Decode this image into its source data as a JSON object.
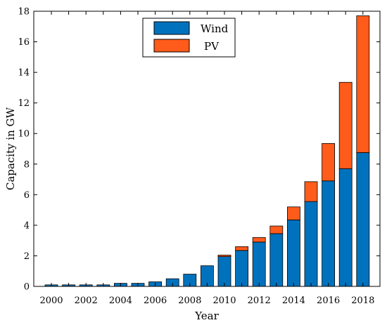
{
  "chart_data": {
    "type": "bar",
    "stacked": true,
    "xlabel": "Year",
    "ylabel": "Capacity in GW",
    "ylim": [
      0,
      18
    ],
    "yticks": [
      0,
      2,
      4,
      6,
      8,
      10,
      12,
      14,
      16,
      18
    ],
    "categories": [
      "2000",
      "2001",
      "2002",
      "2003",
      "2004",
      "2005",
      "2006",
      "2007",
      "2008",
      "2009",
      "2010",
      "2011",
      "2012",
      "2013",
      "2014",
      "2015",
      "2016",
      "2017",
      "2018"
    ],
    "xtick_labels": [
      "2000",
      "2002",
      "2004",
      "2006",
      "2008",
      "2010",
      "2012",
      "2014",
      "2016",
      "2018"
    ],
    "series": [
      {
        "name": "Wind",
        "color": "#0072BD",
        "values": [
          0.1,
          0.1,
          0.1,
          0.1,
          0.2,
          0.2,
          0.3,
          0.5,
          0.8,
          1.35,
          1.95,
          2.35,
          2.9,
          3.45,
          4.35,
          5.55,
          6.9,
          7.7,
          8.75
        ]
      },
      {
        "name": "PV",
        "color": "#FF5B1A",
        "values": [
          0,
          0,
          0,
          0,
          0,
          0,
          0,
          0,
          0,
          0,
          0.1,
          0.25,
          0.3,
          0.5,
          0.85,
          1.3,
          2.45,
          5.65,
          8.95
        ]
      }
    ],
    "grid": false,
    "legend_position": "top-center"
  }
}
